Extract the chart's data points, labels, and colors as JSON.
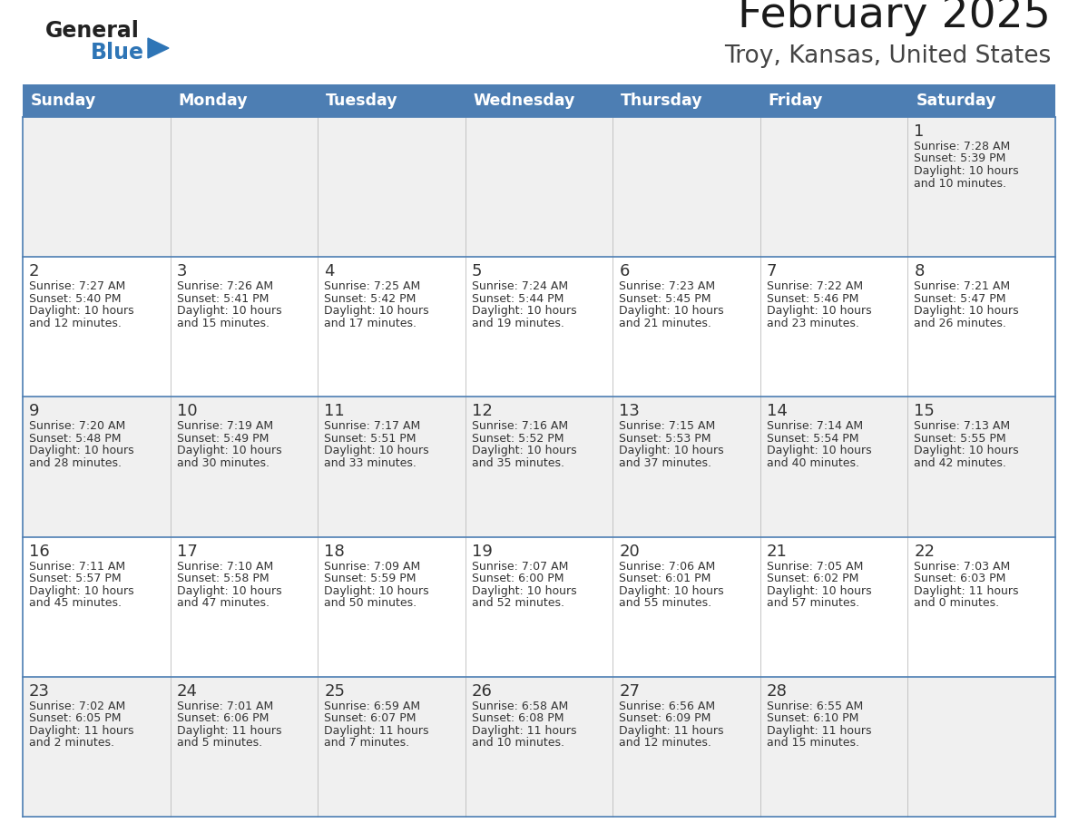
{
  "title": "February 2025",
  "subtitle": "Troy, Kansas, United States",
  "header_bg": "#4D7EB3",
  "header_text": "#FFFFFF",
  "header_days": [
    "Sunday",
    "Monday",
    "Tuesday",
    "Wednesday",
    "Thursday",
    "Friday",
    "Saturday"
  ],
  "cell_bg_white": "#FFFFFF",
  "cell_bg_gray": "#F0F0F0",
  "cell_border_color": "#4D7EB3",
  "cell_inner_border": "#CCCCCC",
  "day_number_color": "#333333",
  "text_color": "#333333",
  "logo_general_color": "#222222",
  "logo_blue_color": "#2E75B6",
  "calendar_data": [
    [
      null,
      null,
      null,
      null,
      null,
      null,
      {
        "day": 1,
        "sunrise": "7:28 AM",
        "sunset": "5:39 PM",
        "daylight": "10 hours",
        "daylight2": "and 10 minutes."
      }
    ],
    [
      {
        "day": 2,
        "sunrise": "7:27 AM",
        "sunset": "5:40 PM",
        "daylight": "10 hours",
        "daylight2": "and 12 minutes."
      },
      {
        "day": 3,
        "sunrise": "7:26 AM",
        "sunset": "5:41 PM",
        "daylight": "10 hours",
        "daylight2": "and 15 minutes."
      },
      {
        "day": 4,
        "sunrise": "7:25 AM",
        "sunset": "5:42 PM",
        "daylight": "10 hours",
        "daylight2": "and 17 minutes."
      },
      {
        "day": 5,
        "sunrise": "7:24 AM",
        "sunset": "5:44 PM",
        "daylight": "10 hours",
        "daylight2": "and 19 minutes."
      },
      {
        "day": 6,
        "sunrise": "7:23 AM",
        "sunset": "5:45 PM",
        "daylight": "10 hours",
        "daylight2": "and 21 minutes."
      },
      {
        "day": 7,
        "sunrise": "7:22 AM",
        "sunset": "5:46 PM",
        "daylight": "10 hours",
        "daylight2": "and 23 minutes."
      },
      {
        "day": 8,
        "sunrise": "7:21 AM",
        "sunset": "5:47 PM",
        "daylight": "10 hours",
        "daylight2": "and 26 minutes."
      }
    ],
    [
      {
        "day": 9,
        "sunrise": "7:20 AM",
        "sunset": "5:48 PM",
        "daylight": "10 hours",
        "daylight2": "and 28 minutes."
      },
      {
        "day": 10,
        "sunrise": "7:19 AM",
        "sunset": "5:49 PM",
        "daylight": "10 hours",
        "daylight2": "and 30 minutes."
      },
      {
        "day": 11,
        "sunrise": "7:17 AM",
        "sunset": "5:51 PM",
        "daylight": "10 hours",
        "daylight2": "and 33 minutes."
      },
      {
        "day": 12,
        "sunrise": "7:16 AM",
        "sunset": "5:52 PM",
        "daylight": "10 hours",
        "daylight2": "and 35 minutes."
      },
      {
        "day": 13,
        "sunrise": "7:15 AM",
        "sunset": "5:53 PM",
        "daylight": "10 hours",
        "daylight2": "and 37 minutes."
      },
      {
        "day": 14,
        "sunrise": "7:14 AM",
        "sunset": "5:54 PM",
        "daylight": "10 hours",
        "daylight2": "and 40 minutes."
      },
      {
        "day": 15,
        "sunrise": "7:13 AM",
        "sunset": "5:55 PM",
        "daylight": "10 hours",
        "daylight2": "and 42 minutes."
      }
    ],
    [
      {
        "day": 16,
        "sunrise": "7:11 AM",
        "sunset": "5:57 PM",
        "daylight": "10 hours",
        "daylight2": "and 45 minutes."
      },
      {
        "day": 17,
        "sunrise": "7:10 AM",
        "sunset": "5:58 PM",
        "daylight": "10 hours",
        "daylight2": "and 47 minutes."
      },
      {
        "day": 18,
        "sunrise": "7:09 AM",
        "sunset": "5:59 PM",
        "daylight": "10 hours",
        "daylight2": "and 50 minutes."
      },
      {
        "day": 19,
        "sunrise": "7:07 AM",
        "sunset": "6:00 PM",
        "daylight": "10 hours",
        "daylight2": "and 52 minutes."
      },
      {
        "day": 20,
        "sunrise": "7:06 AM",
        "sunset": "6:01 PM",
        "daylight": "10 hours",
        "daylight2": "and 55 minutes."
      },
      {
        "day": 21,
        "sunrise": "7:05 AM",
        "sunset": "6:02 PM",
        "daylight": "10 hours",
        "daylight2": "and 57 minutes."
      },
      {
        "day": 22,
        "sunrise": "7:03 AM",
        "sunset": "6:03 PM",
        "daylight": "11 hours",
        "daylight2": "and 0 minutes."
      }
    ],
    [
      {
        "day": 23,
        "sunrise": "7:02 AM",
        "sunset": "6:05 PM",
        "daylight": "11 hours",
        "daylight2": "and 2 minutes."
      },
      {
        "day": 24,
        "sunrise": "7:01 AM",
        "sunset": "6:06 PM",
        "daylight": "11 hours",
        "daylight2": "and 5 minutes."
      },
      {
        "day": 25,
        "sunrise": "6:59 AM",
        "sunset": "6:07 PM",
        "daylight": "11 hours",
        "daylight2": "and 7 minutes."
      },
      {
        "day": 26,
        "sunrise": "6:58 AM",
        "sunset": "6:08 PM",
        "daylight": "11 hours",
        "daylight2": "and 10 minutes."
      },
      {
        "day": 27,
        "sunrise": "6:56 AM",
        "sunset": "6:09 PM",
        "daylight": "11 hours",
        "daylight2": "and 12 minutes."
      },
      {
        "day": 28,
        "sunrise": "6:55 AM",
        "sunset": "6:10 PM",
        "daylight": "11 hours",
        "daylight2": "and 15 minutes."
      },
      null
    ]
  ],
  "figsize": [
    11.88,
    9.18
  ],
  "dpi": 100
}
